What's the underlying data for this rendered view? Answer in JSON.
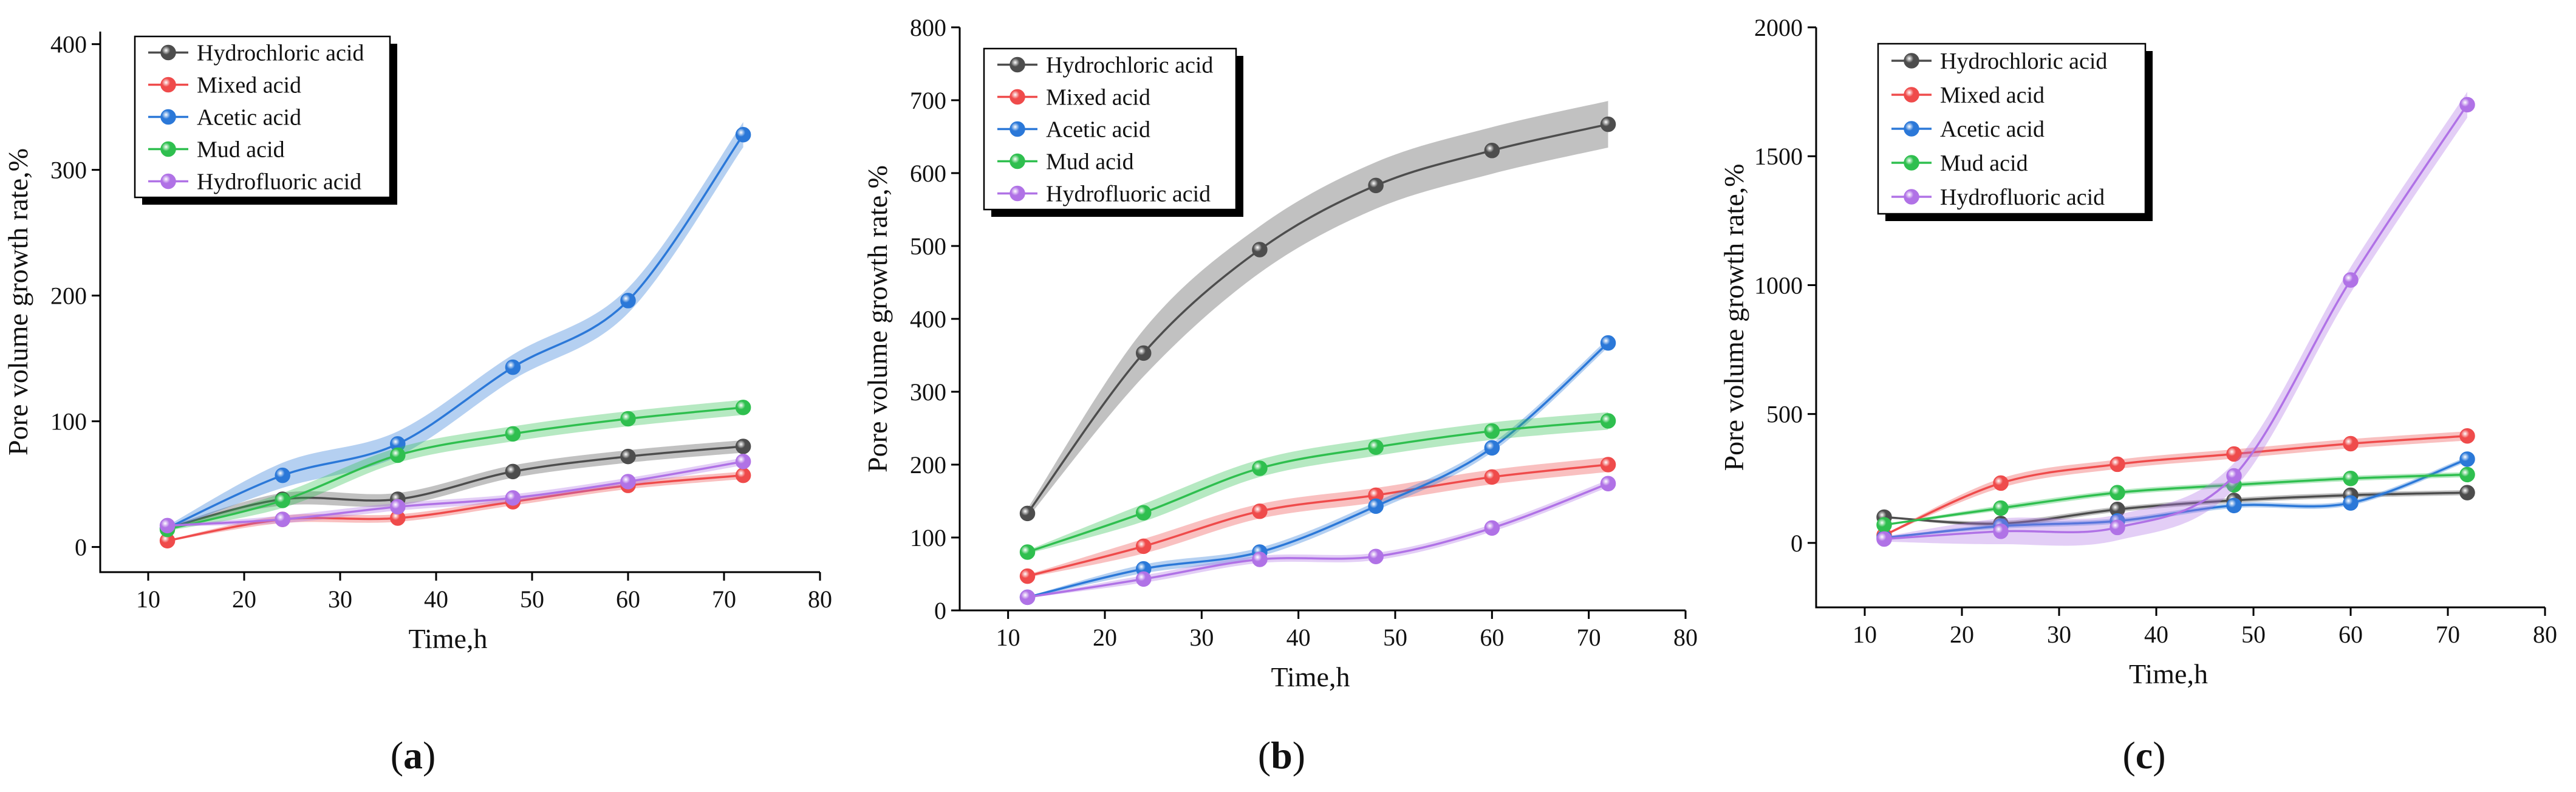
{
  "colors": {
    "Hydrochloric acid": "#4d4d4d",
    "Mixed acid": "#ef4b4b",
    "Acetic acid": "#2b78d8",
    "Mud acid": "#2fbf4f",
    "Hydrofluoric acid": "#b072e6"
  },
  "chart_data": [
    {
      "type": "line",
      "panel": "a",
      "panel_label": "a",
      "xlabel": "Time,h",
      "ylabel": "Pore volume growth rate,%",
      "xlim": [
        5,
        80
      ],
      "ylim": [
        -20,
        410
      ],
      "x_ticks": [
        10,
        20,
        30,
        40,
        50,
        60,
        70,
        80
      ],
      "y_ticks": [
        0,
        100,
        200,
        300,
        400
      ],
      "legend_position": "top-left",
      "x": [
        12,
        24,
        36,
        48,
        60,
        72
      ],
      "series": [
        {
          "name": "Hydrochloric acid",
          "values": [
            15,
            38,
            38,
            60,
            72,
            80
          ],
          "band": 5
        },
        {
          "name": "Mixed acid",
          "values": [
            5,
            22,
            23,
            36,
            49,
            57
          ],
          "band": 3
        },
        {
          "name": "Acetic acid",
          "values": [
            15,
            57,
            82,
            143,
            196,
            328
          ],
          "band": 10
        },
        {
          "name": "Mud acid",
          "values": [
            14,
            37,
            73,
            90,
            102,
            111
          ],
          "band": 6
        },
        {
          "name": "Hydrofluoric acid",
          "values": [
            17,
            22,
            32,
            39,
            52,
            68
          ],
          "band": 3
        }
      ]
    },
    {
      "type": "line",
      "panel": "b",
      "panel_label": "b",
      "xlabel": "Time,h",
      "ylabel": "Pore volume growth rate,%",
      "xlim": [
        5,
        80
      ],
      "ylim": [
        0,
        800
      ],
      "x_ticks": [
        10,
        20,
        30,
        40,
        50,
        60,
        70,
        80
      ],
      "y_ticks": [
        0,
        100,
        200,
        300,
        400,
        500,
        600,
        700,
        800
      ],
      "legend_position": "top-left",
      "x": [
        12,
        24,
        36,
        48,
        60,
        72
      ],
      "series": [
        {
          "name": "Hydrochloric acid",
          "values": [
            133,
            353,
            495,
            583,
            631,
            667
          ],
          "band": 32
        },
        {
          "name": "Mixed acid",
          "values": [
            47,
            88,
            136,
            158,
            183,
            200
          ],
          "band": 10
        },
        {
          "name": "Acetic acid",
          "values": [
            18,
            57,
            80,
            143,
            223,
            367
          ],
          "band": 6
        },
        {
          "name": "Mud acid",
          "values": [
            80,
            134,
            195,
            224,
            246,
            260
          ],
          "band": 12
        },
        {
          "name": "Hydrofluoric acid",
          "values": [
            18,
            43,
            70,
            74,
            113,
            174
          ],
          "band": 5
        }
      ]
    },
    {
      "type": "line",
      "panel": "c",
      "panel_label": "c",
      "xlabel": "Time,h",
      "ylabel": "Pore volume growth rate,%",
      "xlim": [
        5,
        80
      ],
      "ylim": [
        -250,
        2000
      ],
      "x_ticks": [
        10,
        20,
        30,
        40,
        50,
        60,
        70,
        80
      ],
      "y_ticks": [
        0,
        500,
        1000,
        1500,
        2000
      ],
      "legend_position": "top-left",
      "x": [
        12,
        24,
        36,
        48,
        60,
        72
      ],
      "series": [
        {
          "name": "Hydrochloric acid",
          "values": [
            100,
            75,
            130,
            165,
            185,
            195
          ],
          "band": 10
        },
        {
          "name": "Mixed acid",
          "values": [
            30,
            232,
            305,
            345,
            385,
            415
          ],
          "band": 18
        },
        {
          "name": "Acetic acid",
          "values": [
            20,
            65,
            85,
            145,
            155,
            325
          ],
          "band": 10
        },
        {
          "name": "Mud acid",
          "values": [
            70,
            135,
            195,
            225,
            250,
            265
          ],
          "band": 10
        },
        {
          "name": "Hydrofluoric acid",
          "values": [
            15,
            45,
            60,
            260,
            1020,
            1700
          ],
          "band": 50
        }
      ]
    }
  ]
}
